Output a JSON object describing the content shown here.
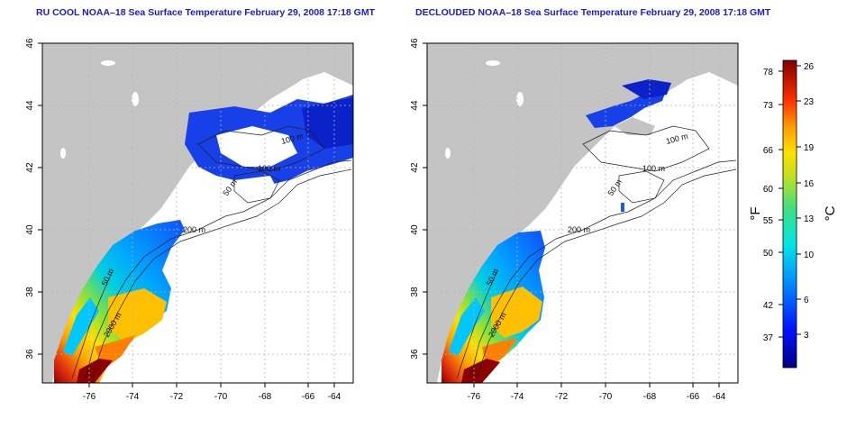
{
  "titles": {
    "left": "RU COOL NOAA–18 Sea Surface Temperature February 29, 2008 17:18 GMT",
    "right": "DECLOUDED NOAA–18 Sea Surface Temperature February 29, 2008 17:18 GMT"
  },
  "lat_ticks": [
    "46",
    "44",
    "42",
    "40",
    "38",
    "36"
  ],
  "lon_ticks": [
    "-76",
    "-74",
    "-72",
    "-70",
    "-68",
    "-66",
    "-64"
  ],
  "contour_labels": [
    "100 m",
    "100 m",
    "50 m",
    "200 m",
    "50 m",
    "2000 m"
  ],
  "colorbar": {
    "fahrenheit_ticks": [
      "78",
      "73",
      "66",
      "60",
      "55",
      "50",
      "42",
      "37"
    ],
    "celsius_ticks": [
      "26",
      "23",
      "19",
      "16",
      "13",
      "10",
      "6",
      "3"
    ],
    "fahrenheit_unit": "°F",
    "celsius_unit": "°C"
  },
  "colors": {
    "land": "#c4c4c4",
    "grid": "#b4b4b4",
    "title": "#1a1ad6",
    "warm": "#8b0000",
    "cold": "#00008b"
  }
}
